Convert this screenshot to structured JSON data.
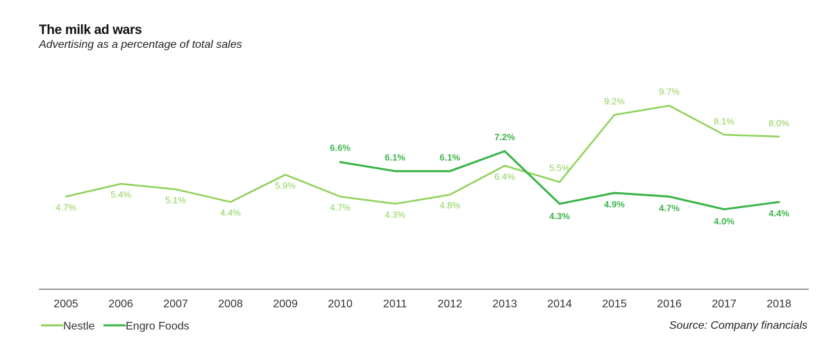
{
  "chart_data": {
    "type": "line",
    "title": "The milk ad wars",
    "subtitle": "Advertising as a percentage of total sales",
    "source": "Source: Company financials",
    "x": [
      "2005",
      "2006",
      "2007",
      "2008",
      "2009",
      "2010",
      "2011",
      "2012",
      "2013",
      "2014",
      "2015",
      "2016",
      "2017",
      "2018"
    ],
    "ylim": [
      0,
      12
    ],
    "grid": false,
    "legend_position": "bottom-left",
    "series": [
      {
        "name": "Nestle",
        "color": "#8ed25a",
        "values": [
          4.7,
          5.4,
          5.1,
          4.4,
          5.9,
          4.7,
          4.3,
          4.8,
          6.4,
          5.5,
          9.2,
          9.7,
          8.1,
          8.0
        ],
        "labels": [
          "4.7%",
          "5.4%",
          "5.1%",
          "4.4%",
          "5.9%",
          "4.7%",
          "4.3%",
          "4.8%",
          "6.4%",
          "5.5%",
          "9.2%",
          "9.7%",
          "8.1%",
          "8.0%"
        ]
      },
      {
        "name": "Engro Foods",
        "color": "#3cb54a",
        "values": [
          null,
          null,
          null,
          null,
          null,
          6.6,
          6.1,
          6.1,
          7.2,
          4.3,
          4.9,
          4.7,
          4.0,
          4.4
        ],
        "labels": [
          "",
          "",
          "",
          "",
          "",
          "6.6%",
          "6.1%",
          "6.1%",
          "7.2%",
          "4.3%",
          "4.9%",
          "4.7%",
          "4.0%",
          "4.4%"
        ]
      }
    ]
  }
}
